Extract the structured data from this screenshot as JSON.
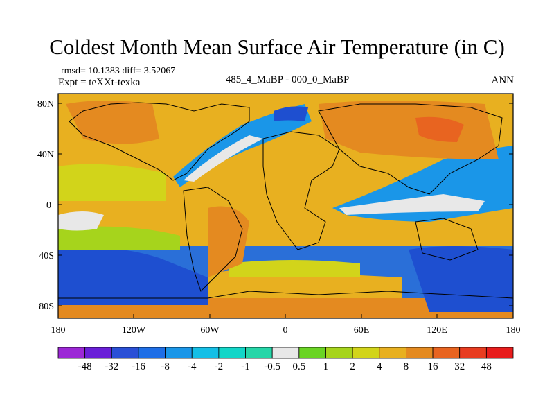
{
  "title": "Coldest Month Mean Surface Air Temperature (in C)",
  "stats": "rmsd= 10.1383 diff= 3.52067",
  "expt": "Expt = teXXt-texka",
  "subtitle": "485_4_MaBP - 000_0_MaBP",
  "season": "ANN",
  "axes": {
    "lat_ticks": [
      "80N",
      "40N",
      "0",
      "40S",
      "80S"
    ],
    "lon_ticks": [
      "180",
      "120W",
      "60W",
      "0",
      "60E",
      "120E",
      "180"
    ]
  },
  "colorbar": {
    "labels": [
      "-48",
      "-32",
      "-16",
      "-8",
      "-4",
      "-2",
      "-1",
      "-0.5",
      "0.5",
      "1",
      "2",
      "4",
      "8",
      "16",
      "32",
      "48"
    ],
    "colors": [
      "#9c27d6",
      "#6a1fd8",
      "#2a4fd6",
      "#1e6ee6",
      "#1a96e8",
      "#14bfe6",
      "#12d6c8",
      "#26d6a8",
      "#e8e8e8",
      "#6ad424",
      "#a6d41c",
      "#d2d41a",
      "#e8b020",
      "#e48a20",
      "#e86420",
      "#e83c20",
      "#e81c1c"
    ]
  }
}
